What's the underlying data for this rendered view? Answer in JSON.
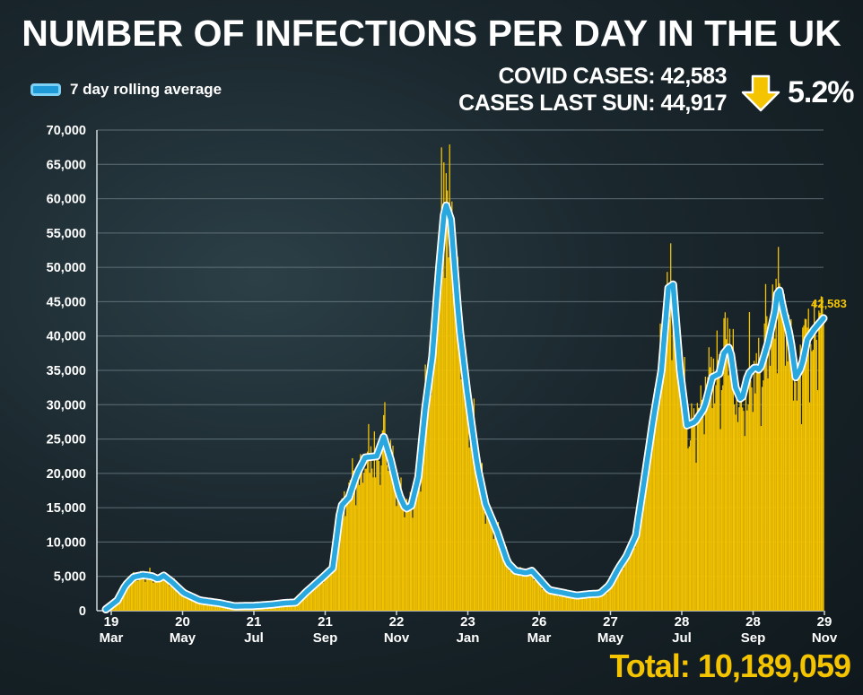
{
  "title": "NUMBER OF INFECTIONS PER DAY IN THE UK",
  "legend_label": "7 day rolling average",
  "stats": {
    "cases_label": "COVID CASES: 42,583",
    "last_sun_label": "CASES LAST SUN: 44,917",
    "change": "5.2%",
    "direction": "down"
  },
  "total": {
    "label": "Total:",
    "value": "10,189,059"
  },
  "colors": {
    "bars": "#f5c400",
    "line": "#29a8e0",
    "line_border": "#ffffff",
    "grid": "#6f7f86",
    "accent": "#f5c400"
  },
  "chart_data": {
    "type": "bar+line",
    "title": "NUMBER OF INFECTIONS PER DAY IN THE UK",
    "ylim": [
      0,
      70000
    ],
    "yticks": [
      "0",
      "5,000",
      "10,000",
      "15,000",
      "20,000",
      "25,000",
      "30,000",
      "35,000",
      "40,000",
      "45,000",
      "50,000",
      "55,000",
      "60,000",
      "65,000",
      "70,000"
    ],
    "xticks": [
      {
        "day": "19",
        "month": "Mar"
      },
      {
        "day": "20",
        "month": "May"
      },
      {
        "day": "21",
        "month": "Jul"
      },
      {
        "day": "21",
        "month": "Sep"
      },
      {
        "day": "22",
        "month": "Nov"
      },
      {
        "day": "23",
        "month": "Jan"
      },
      {
        "day": "26",
        "month": "Mar"
      },
      {
        "day": "27",
        "month": "May"
      },
      {
        "day": "28",
        "month": "Jul"
      },
      {
        "day": "28",
        "month": "Sep"
      },
      {
        "day": "29",
        "month": "Nov"
      }
    ],
    "date_range": [
      "2020-03-19",
      "2021-11-29"
    ],
    "rolling_average": [
      [
        "2020-03-19",
        200
      ],
      [
        "2020-03-29",
        1500
      ],
      [
        "2020-04-05",
        3700
      ],
      [
        "2020-04-12",
        4900
      ],
      [
        "2020-04-20",
        5200
      ],
      [
        "2020-04-28",
        5000
      ],
      [
        "2020-05-03",
        4600
      ],
      [
        "2020-05-08",
        5100
      ],
      [
        "2020-05-15",
        4200
      ],
      [
        "2020-05-25",
        2600
      ],
      [
        "2020-06-08",
        1500
      ],
      [
        "2020-06-25",
        1100
      ],
      [
        "2020-07-08",
        650
      ],
      [
        "2020-07-25",
        700
      ],
      [
        "2020-08-10",
        900
      ],
      [
        "2020-08-20",
        1100
      ],
      [
        "2020-08-30",
        1200
      ],
      [
        "2020-09-08",
        2700
      ],
      [
        "2020-09-22",
        4800
      ],
      [
        "2020-10-01",
        6200
      ],
      [
        "2020-10-08",
        15200
      ],
      [
        "2020-10-15",
        16500
      ],
      [
        "2020-10-22",
        20000
      ],
      [
        "2020-10-29",
        22300
      ],
      [
        "2020-11-08",
        22500
      ],
      [
        "2020-11-14",
        25300
      ],
      [
        "2020-11-20",
        22000
      ],
      [
        "2020-11-27",
        17000
      ],
      [
        "2020-12-03",
        14800
      ],
      [
        "2020-12-08",
        15300
      ],
      [
        "2020-12-14",
        19500
      ],
      [
        "2020-12-20",
        29500
      ],
      [
        "2020-12-26",
        37000
      ],
      [
        "2021-01-01",
        50000
      ],
      [
        "2021-01-06",
        59500
      ],
      [
        "2021-01-11",
        57000
      ],
      [
        "2021-01-18",
        42000
      ],
      [
        "2021-01-25",
        32000
      ],
      [
        "2021-02-03",
        21000
      ],
      [
        "2021-02-10",
        15500
      ],
      [
        "2021-02-20",
        11500
      ],
      [
        "2021-03-01",
        7000
      ],
      [
        "2021-03-08",
        5800
      ],
      [
        "2021-03-17",
        5500
      ],
      [
        "2021-03-22",
        5800
      ],
      [
        "2021-03-29",
        4500
      ],
      [
        "2021-04-06",
        3000
      ],
      [
        "2021-04-15",
        2700
      ],
      [
        "2021-04-30",
        2200
      ],
      [
        "2021-05-10",
        2400
      ],
      [
        "2021-05-20",
        2500
      ],
      [
        "2021-05-28",
        3700
      ],
      [
        "2021-06-05",
        6200
      ],
      [
        "2021-06-12",
        8000
      ],
      [
        "2021-06-20",
        11000
      ],
      [
        "2021-06-28",
        20000
      ],
      [
        "2021-07-05",
        28000
      ],
      [
        "2021-07-12",
        35000
      ],
      [
        "2021-07-18",
        47000
      ],
      [
        "2021-07-22",
        47500
      ],
      [
        "2021-07-28",
        35000
      ],
      [
        "2021-08-03",
        27000
      ],
      [
        "2021-08-10",
        27500
      ],
      [
        "2021-08-18",
        29500
      ],
      [
        "2021-08-25",
        34000
      ],
      [
        "2021-08-31",
        34500
      ],
      [
        "2021-09-04",
        37500
      ],
      [
        "2021-09-09",
        38500
      ],
      [
        "2021-09-14",
        32500
      ],
      [
        "2021-09-19",
        30500
      ],
      [
        "2021-09-25",
        34500
      ],
      [
        "2021-10-01",
        35500
      ],
      [
        "2021-10-05",
        35000
      ],
      [
        "2021-10-12",
        39000
      ],
      [
        "2021-10-18",
        43500
      ],
      [
        "2021-10-21",
        47500
      ],
      [
        "2021-10-25",
        44000
      ],
      [
        "2021-10-31",
        40000
      ],
      [
        "2021-11-05",
        34000
      ],
      [
        "2021-11-10",
        35500
      ],
      [
        "2021-11-15",
        39500
      ],
      [
        "2021-11-21",
        41000
      ],
      [
        "2021-11-29",
        42583
      ]
    ],
    "daily_cases_note": "daily bars follow the rolling average with day-to-day noise",
    "annotations": [
      {
        "date": "2021-11-29",
        "value": 42583,
        "label": "42,583"
      }
    ]
  }
}
